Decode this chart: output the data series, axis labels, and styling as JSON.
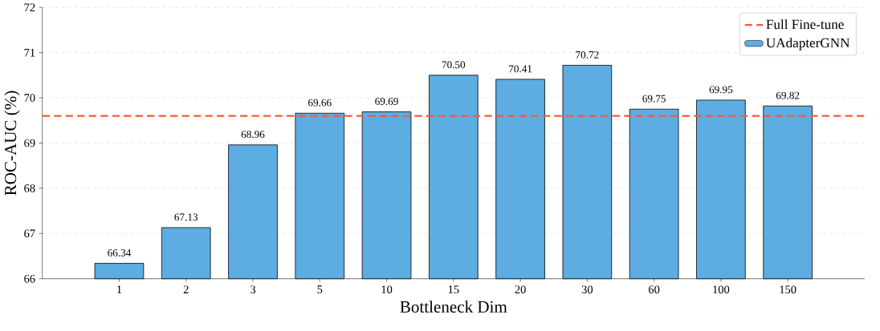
{
  "chart_data": {
    "type": "bar",
    "xlabel": "Bottleneck Dim",
    "ylabel": "ROC-AUC (%)",
    "categories": [
      "1",
      "2",
      "3",
      "5",
      "10",
      "15",
      "20",
      "30",
      "60",
      "100",
      "150"
    ],
    "series": [
      {
        "name": "UAdapterGNN",
        "color": "#5dade2",
        "values": [
          66.34,
          67.13,
          68.96,
          69.66,
          69.69,
          70.5,
          70.41,
          70.72,
          69.75,
          69.95,
          69.82
        ],
        "value_labels": [
          "66.34",
          "67.13",
          "68.96",
          "69.66",
          "69.69",
          "70.50",
          "70.41",
          "70.72",
          "69.75",
          "69.95",
          "69.82"
        ]
      }
    ],
    "ref_lines": [
      {
        "axis": "y",
        "value": 69.6,
        "label": "Full Fine-tune",
        "color": "#ff5733",
        "line_style": "dashed"
      }
    ],
    "ylim": [
      66,
      72
    ],
    "yticks": [
      66,
      67,
      68,
      69,
      70,
      71,
      72
    ],
    "grid": "y",
    "legend": "top right"
  }
}
